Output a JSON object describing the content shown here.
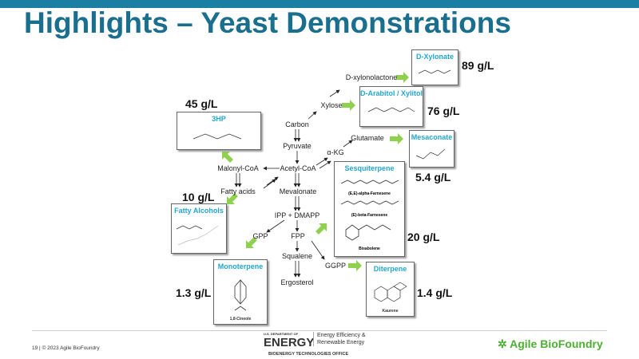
{
  "slide": {
    "title": "Highlights – Yeast Demonstrations"
  },
  "pathway": {
    "carbon": "Carbon",
    "pyruvate": "Pyruvate",
    "acetyl_coa": "Acetyl-CoA",
    "mevalonate": "Mevalonate",
    "ipp": "IPP + DMAPP",
    "fpp": "FPP",
    "squalene": "Squalene",
    "ergosterol": "Ergosterol",
    "gpp": "GPP",
    "ggpp": "GGPP",
    "akg": "α-KG",
    "glutamate": "Glutamate",
    "xylose": "Xylose",
    "xylonolactone": "D-xylonolactone",
    "malonyl": "Malonyl-CoA",
    "fatty_acids": "Fatty acids"
  },
  "products": {
    "xylonate": {
      "title": "D-Xylonate",
      "titer": "89 g/L"
    },
    "arabitol": {
      "title": "D-Arabitol / Xylitol",
      "titer": "76 g/L"
    },
    "mesaconate": {
      "title": "Mesaconate",
      "titer": "5.4 g/L"
    },
    "hp3": {
      "title": "3HP",
      "titer": "45 g/L"
    },
    "fatty_alcohols": {
      "title": "Fatty Alcohols",
      "titer": "10 g/L"
    },
    "sesquiterpene": {
      "title": "Sesquiterpene",
      "titer": "20 g/L",
      "compounds": [
        "(E,E)-alpha-Farnesene",
        "(E)-beta-Farnesene",
        "Bisabolene"
      ]
    },
    "monoterpene": {
      "title": "Monoterpene",
      "titer": "1.3 g/L",
      "compound": "1,8-Cineole"
    },
    "diterpene": {
      "title": "Diterpene",
      "titer": "1.4 g/L",
      "compound": "Kaurene"
    }
  },
  "footer": {
    "page": "19",
    "sep": "|",
    "copyright": "© 2023 Agile BioFoundry",
    "doe_small": "U.S. DEPARTMENT OF",
    "doe": "ENERGY",
    "eere": "Energy Efficiency & Renewable Energy",
    "bto": "BIOENERGY TECHNOLOGIES OFFICE",
    "abf": "Agile BioFoundry"
  },
  "colors": {
    "title": "#1a6e8e",
    "accent_bar": "#1b7fa3",
    "box_title": "#23a6cf",
    "green_arrow": "#8fd14f",
    "abf_green": "#4caf32"
  }
}
